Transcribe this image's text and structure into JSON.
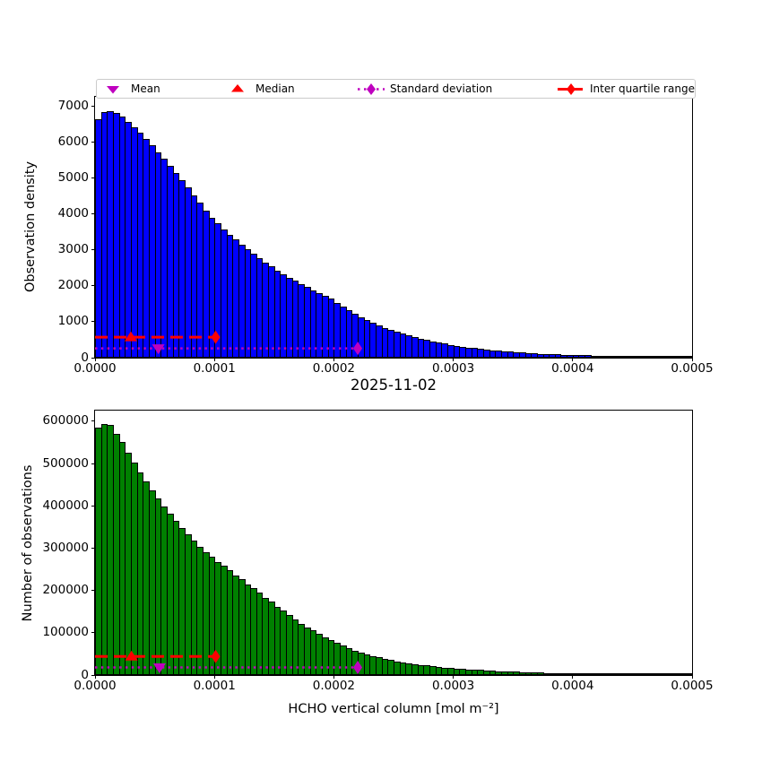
{
  "figure": {
    "title": "2025-11-02",
    "background": "#ffffff"
  },
  "legend": {
    "items": [
      {
        "label": "Mean",
        "marker": "triangle-down",
        "color": "#bf00bf",
        "line_style": "none"
      },
      {
        "label": "Median",
        "marker": "triangle-up",
        "color": "#ff0000",
        "line_style": "none"
      },
      {
        "label": "Standard deviation",
        "marker": "diamond",
        "color": "#bf00bf",
        "line_style": "dotted"
      },
      {
        "label": "Inter quartile range",
        "marker": "diamond",
        "color": "#ff0000",
        "line_style": "dashed"
      }
    ]
  },
  "chart_data": [
    {
      "type": "bar",
      "name": "observation-density-histogram",
      "title": "",
      "ylabel": "Observation density",
      "xlabel": "",
      "bar_color": "#0000ff",
      "bar_edge_color": "#000000",
      "xlim": [
        0,
        0.0005
      ],
      "ylim": [
        0,
        7260
      ],
      "bin_width": 5e-06,
      "grid": false,
      "x_ticks": {
        "values": [
          0,
          0.0001,
          0.0002,
          0.0003,
          0.0004,
          0.0005
        ],
        "labels": [
          "0.0000",
          "0.0001",
          "0.0002",
          "0.0003",
          "0.0004",
          "0.0005"
        ]
      },
      "y_ticks": {
        "values": [
          0,
          1000,
          2000,
          3000,
          4000,
          5000,
          6000,
          7000
        ],
        "labels": [
          "0",
          "1000",
          "2000",
          "3000",
          "4000",
          "5000",
          "6000",
          "7000"
        ]
      },
      "values": [
        6640,
        6830,
        6860,
        6800,
        6700,
        6570,
        6420,
        6260,
        6090,
        5910,
        5720,
        5530,
        5340,
        5140,
        4940,
        4730,
        4520,
        4310,
        4100,
        3900,
        3736,
        3579,
        3428,
        3284,
        3146,
        3013,
        2887,
        2765,
        2649,
        2537,
        2430,
        2328,
        2230,
        2136,
        2046,
        1960,
        1878,
        1799,
        1723,
        1650,
        1529,
        1417,
        1313,
        1217,
        1128,
        1045,
        969,
        898,
        832,
        771,
        715,
        662,
        614,
        569,
        527,
        488,
        453,
        420,
        389,
        360,
        333,
        308,
        285,
        263,
        243,
        225,
        208,
        192,
        178,
        164,
        152,
        140,
        130,
        120,
        111,
        103,
        95,
        88,
        81,
        75,
        71,
        67,
        64,
        60,
        57,
        54,
        51,
        48,
        46,
        43,
        41,
        39,
        37,
        35,
        33,
        31,
        29,
        28,
        26,
        25
      ],
      "annotations": {
        "mean": {
          "x": 5.3e-05,
          "y": 260,
          "color": "#bf00bf"
        },
        "median": {
          "x": 3e-05,
          "y": 570,
          "color": "#ff0000"
        },
        "std_line": {
          "x_start": 0,
          "x_end": 0.00022,
          "y": 260,
          "color": "#bf00bf",
          "style": "dotted"
        },
        "iqr_line": {
          "x_start": 0,
          "x_end": 0.000101,
          "y": 570,
          "color": "#ff0000",
          "style": "dashed"
        }
      }
    },
    {
      "type": "bar",
      "name": "observation-count-histogram",
      "title": "",
      "ylabel": "Number of observations",
      "xlabel": "HCHO vertical column [mol m⁻²]",
      "bar_color": "#008000",
      "bar_edge_color": "#000000",
      "xlim": [
        0,
        0.0005
      ],
      "ylim": [
        0,
        625000
      ],
      "bin_width": 5e-06,
      "grid": false,
      "x_ticks": {
        "values": [
          0,
          0.0001,
          0.0002,
          0.0003,
          0.0004,
          0.0005
        ],
        "labels": [
          "0.0000",
          "0.0001",
          "0.0002",
          "0.0003",
          "0.0004",
          "0.0005"
        ]
      },
      "y_ticks": {
        "values": [
          0,
          100000,
          200000,
          300000,
          400000,
          500000,
          600000
        ],
        "labels": [
          "0",
          "100000",
          "200000",
          "300000",
          "400000",
          "500000",
          "600000"
        ]
      },
      "values": [
        584000,
        593000,
        591000,
        570000,
        550000,
        526000,
        502000,
        478000,
        457000,
        436000,
        417000,
        399000,
        381000,
        364000,
        348000,
        332000,
        318000,
        303000,
        291000,
        279000,
        268000,
        258000,
        247000,
        236000,
        226000,
        215000,
        205000,
        194000,
        183000,
        173000,
        162000,
        152000,
        141000,
        131000,
        121000,
        113000,
        105000,
        97000,
        90000,
        83000,
        76000,
        69000,
        64000,
        58000,
        54000,
        49000,
        45000,
        42000,
        38000,
        35000,
        32500,
        30000,
        28000,
        26000,
        24000,
        22500,
        21000,
        19500,
        18000,
        17000,
        15800,
        14700,
        13700,
        12700,
        11800,
        11000,
        10200,
        9500,
        8800,
        8200,
        7600,
        7100,
        6600,
        6100,
        5700,
        5300,
        4900,
        4600,
        4300,
        4000,
        3700,
        3400,
        3200,
        3000,
        2800,
        2600,
        2400,
        2200,
        2100,
        1900,
        1800,
        1700,
        1500,
        1400,
        1300,
        1200,
        1100,
        1000,
        900,
        800
      ],
      "annotations": {
        "mean": {
          "x": 5.4e-05,
          "y": 18000,
          "color": "#bf00bf"
        },
        "median": {
          "x": 3.05e-05,
          "y": 44000,
          "color": "#ff0000"
        },
        "std_line": {
          "x_start": 0,
          "x_end": 0.00022,
          "y": 18000,
          "color": "#bf00bf",
          "style": "dotted"
        },
        "iqr_line": {
          "x_start": 0,
          "x_end": 0.000101,
          "y": 44000,
          "color": "#ff0000",
          "style": "dashed"
        }
      }
    }
  ]
}
